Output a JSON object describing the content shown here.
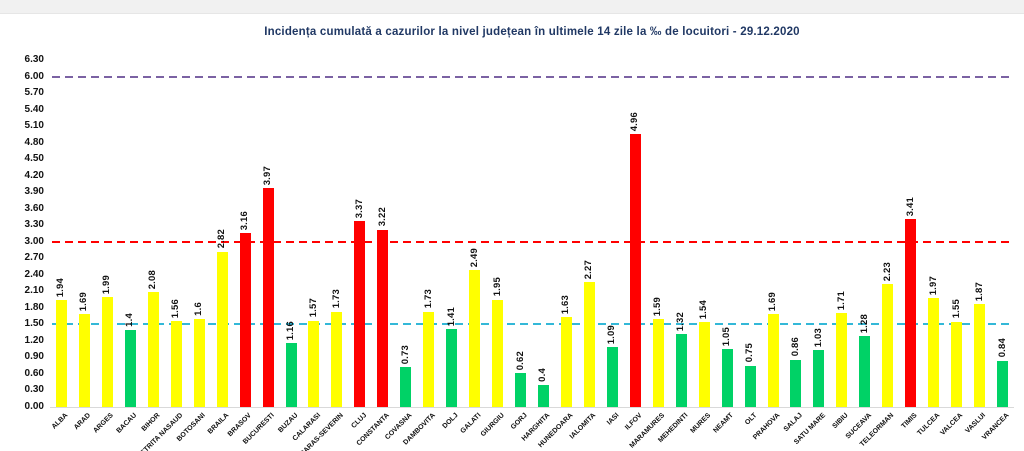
{
  "title": "Incidența cumulată a cazurilor la nivel județean în ultimele 14 zile   la ‰ de locuitori  - 29.12.2020",
  "chart_data": {
    "type": "bar",
    "title": "Incidența cumulată a cazurilor la nivel județean în ultimele 14 zile   la ‰ de locuitori  - 29.12.2020",
    "xlabel": "",
    "ylabel": "",
    "ylim": [
      0,
      6.3
    ],
    "ytick_step": 0.3,
    "grid": false,
    "legend": "none",
    "categories": [
      "ALBA",
      "ARAD",
      "ARGES",
      "BACAU",
      "BIHOR",
      "BISTRITA NASAUD",
      "BOTOSANI",
      "BRAILA",
      "BRASOV",
      "BUCURESTI",
      "BUZAU",
      "CALARASI",
      "CARAS-SEVERIN",
      "CLUJ",
      "CONSTANTA",
      "COVASNA",
      "DAMBOVITA",
      "DOLJ",
      "GALATI",
      "GIURGIU",
      "GORJ",
      "HARGHITA",
      "HUNEDOARA",
      "IALOMITA",
      "IASI",
      "ILFOV",
      "MARAMURES",
      "MEHEDINTI",
      "MURES",
      "NEAMT",
      "OLT",
      "PRAHOVA",
      "SALAJ",
      "SATU MARE",
      "SIBIU",
      "SUCEAVA",
      "TELEORMAN",
      "TIMIS",
      "TULCEA",
      "VALCEA",
      "VASLUI",
      "VRANCEA"
    ],
    "values": [
      1.94,
      1.69,
      1.99,
      1.4,
      2.08,
      1.56,
      1.6,
      2.82,
      3.16,
      3.97,
      1.16,
      1.57,
      1.73,
      3.37,
      3.22,
      0.73,
      1.73,
      1.41,
      2.49,
      1.95,
      0.62,
      0.4,
      1.63,
      2.27,
      1.09,
      4.96,
      1.59,
      1.32,
      1.54,
      1.05,
      0.75,
      1.69,
      0.86,
      1.03,
      1.71,
      1.28,
      2.23,
      3.41,
      1.97,
      1.55,
      1.87,
      0.84
    ],
    "value_labels": [
      "1.94",
      "1.69",
      "1.99",
      "1.4",
      "2.08",
      "1.56",
      "1.6",
      "2.82",
      "3.16",
      "3.97",
      "1.16",
      "1.57",
      "1.73",
      "3.37",
      "3.22",
      "0.73",
      "1.73",
      "1.41",
      "2.49",
      "1.95",
      "0.62",
      "0.4",
      "1.63",
      "2.27",
      "1.09",
      "4.96",
      "1.59",
      "1.32",
      "1.54",
      "1.05",
      "0.75",
      "1.69",
      "0.86",
      "1.03",
      "1.71",
      "1.28",
      "2.23",
      "3.41",
      "1.97",
      "1.55",
      "1.87",
      "0.84"
    ],
    "bar_colors": [
      "yellow",
      "yellow",
      "yellow",
      "green",
      "yellow",
      "yellow",
      "yellow",
      "yellow",
      "red",
      "red",
      "green",
      "yellow",
      "yellow",
      "red",
      "red",
      "green",
      "yellow",
      "green",
      "yellow",
      "yellow",
      "green",
      "green",
      "yellow",
      "yellow",
      "green",
      "red",
      "yellow",
      "green",
      "yellow",
      "green",
      "green",
      "yellow",
      "green",
      "green",
      "yellow",
      "green",
      "yellow",
      "red",
      "yellow",
      "yellow",
      "yellow",
      "green"
    ],
    "palette": {
      "green": "#00D266",
      "yellow": "#FFFF00",
      "red": "#FF0000"
    },
    "reference_lines": [
      {
        "value": 6.0,
        "color": "#7B62A3",
        "style": "dashed"
      },
      {
        "value": 3.0,
        "color": "#FF0000",
        "style": "dashed"
      },
      {
        "value": 1.5,
        "color": "#33B8D8",
        "style": "dashed"
      }
    ],
    "title_color": "#203864"
  }
}
